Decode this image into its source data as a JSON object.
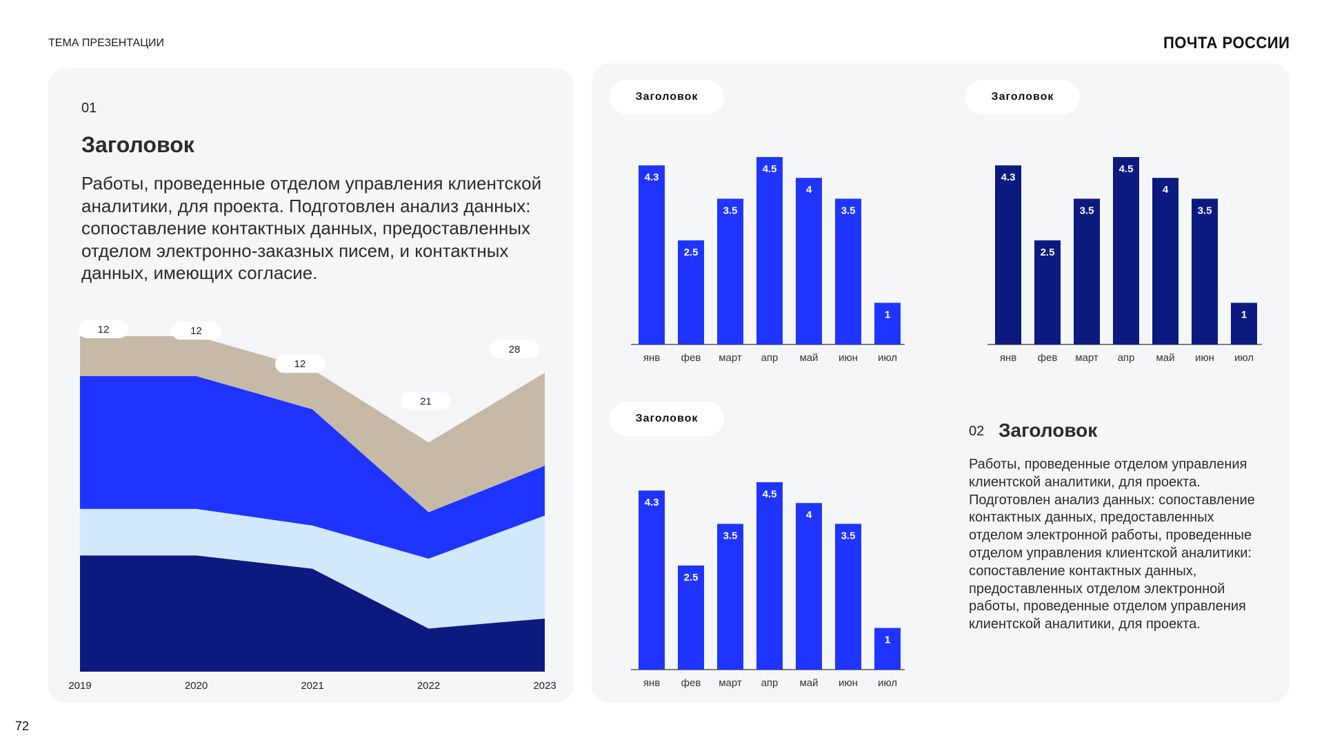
{
  "header": {
    "topic": "ТЕМА ПРЕЗЕНТАЦИИ",
    "logo": "ПОЧТА РОССИИ"
  },
  "page_number": "72",
  "left_block": {
    "number": "01",
    "title": "Заголовок",
    "text": "Работы, проведенные отделом управления клиентской аналитики, для проекта. Подготовлен анализ данных: сопоставление контактных данных, предоставленных отделом электронно-заказных писем, и контактных данных, имеющих согласие."
  },
  "right_block": {
    "number": "02",
    "title": "Заголовок",
    "text": "Работы, проведенные отделом управления клиентской аналитики, для проекта. Подготовлен анализ данных: сопоставление контактных данных, предоставленных отделом электронной работы, проведенные отделом управления клиентской аналитики: сопоставление контактных данных, предоставленных отделом электронной работы, проведенные отделом управления клиентской аналитики, для проекта."
  },
  "colors": {
    "bright_blue": "#1f35ff",
    "dark_navy": "#0c1a80",
    "light_blue": "#d2e9fc",
    "beige": "#c6b9a6",
    "card_bg": "#f4f6f8"
  },
  "chart_data": [
    {
      "type": "area",
      "stacked": true,
      "x": [
        "2019",
        "2020",
        "2021",
        "2022",
        "2023"
      ],
      "series": [
        {
          "color": "#0c1a80",
          "values": [
            35,
            35,
            31,
            13,
            16
          ]
        },
        {
          "color": "#d2e9fc",
          "values": [
            14,
            14,
            13,
            21,
            31
          ]
        },
        {
          "color": "#1f35ff",
          "values": [
            40,
            40,
            35,
            14,
            15
          ]
        },
        {
          "color": "#c6b9a6",
          "values": [
            12,
            12,
            12,
            21,
            28
          ]
        }
      ],
      "top_labels": [
        "12",
        "12",
        "12",
        "21",
        "28"
      ]
    },
    {
      "type": "bar",
      "title": "Заголовок",
      "color": "#1f35ff",
      "categories": [
        "янв",
        "фев",
        "март",
        "апр",
        "май",
        "июн",
        "июл"
      ],
      "values": [
        4.3,
        2.5,
        3.5,
        4.5,
        4,
        3.5,
        1
      ],
      "ylim": [
        0,
        4.5
      ]
    },
    {
      "type": "bar",
      "title": "Заголовок",
      "color": "#0c1a80",
      "categories": [
        "янв",
        "фев",
        "март",
        "апр",
        "май",
        "июн",
        "июл"
      ],
      "values": [
        4.3,
        2.5,
        3.5,
        4.5,
        4,
        3.5,
        1
      ],
      "ylim": [
        0,
        4.5
      ]
    },
    {
      "type": "bar",
      "title": "Заголовок",
      "color": "#1f35ff",
      "categories": [
        "янв",
        "фев",
        "март",
        "апр",
        "май",
        "июн",
        "июл"
      ],
      "values": [
        4.3,
        2.5,
        3.5,
        4.5,
        4,
        3.5,
        1
      ],
      "ylim": [
        0,
        4.5
      ]
    }
  ]
}
